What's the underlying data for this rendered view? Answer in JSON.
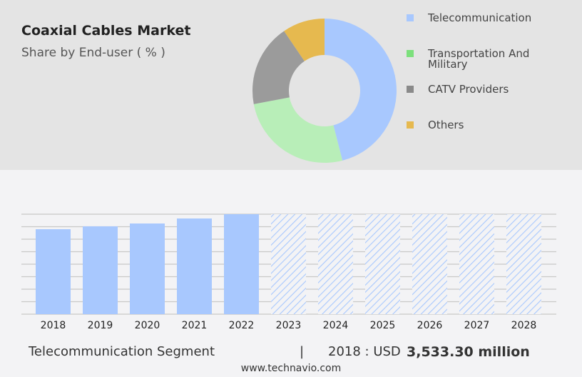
{
  "title": "Coaxial Cables Market",
  "subtitle": "Share by End-user ( % )",
  "chart_data": [
    {
      "type": "pie",
      "donut": true,
      "labels": [
        "Telecommunication",
        "Transportation And Military",
        "CATV Providers",
        "Others"
      ],
      "values": [
        46,
        26,
        18.5,
        9.5
      ],
      "colors": [
        "#a8c8fe",
        "#b8eeb8",
        "#9b9b9b",
        "#e6b94f"
      ],
      "legend_colors": [
        "#a8c8fe",
        "#7ce07c",
        "#8a8a8a",
        "#e6b94f"
      ],
      "legend": "right"
    },
    {
      "type": "bar",
      "categories": [
        "2018",
        "2019",
        "2020",
        "2021",
        "2022",
        "2023",
        "2024",
        "2025",
        "2026",
        "2027",
        "2028"
      ],
      "values": [
        3533.3,
        3652,
        3771,
        3979,
        4157,
        null,
        null,
        null,
        null,
        null,
        null
      ],
      "forecast": [
        "2023",
        "2024",
        "2025",
        "2026",
        "2027",
        "2028"
      ],
      "color": "#a8c8fe",
      "ylim": [
        0,
        4157
      ],
      "grid": true
    }
  ],
  "footer": {
    "segment": "Telecommunication Segment",
    "separator": "|",
    "year_label": "2018 : USD",
    "value": "3,533.30 million"
  },
  "url": "www.technavio.com"
}
